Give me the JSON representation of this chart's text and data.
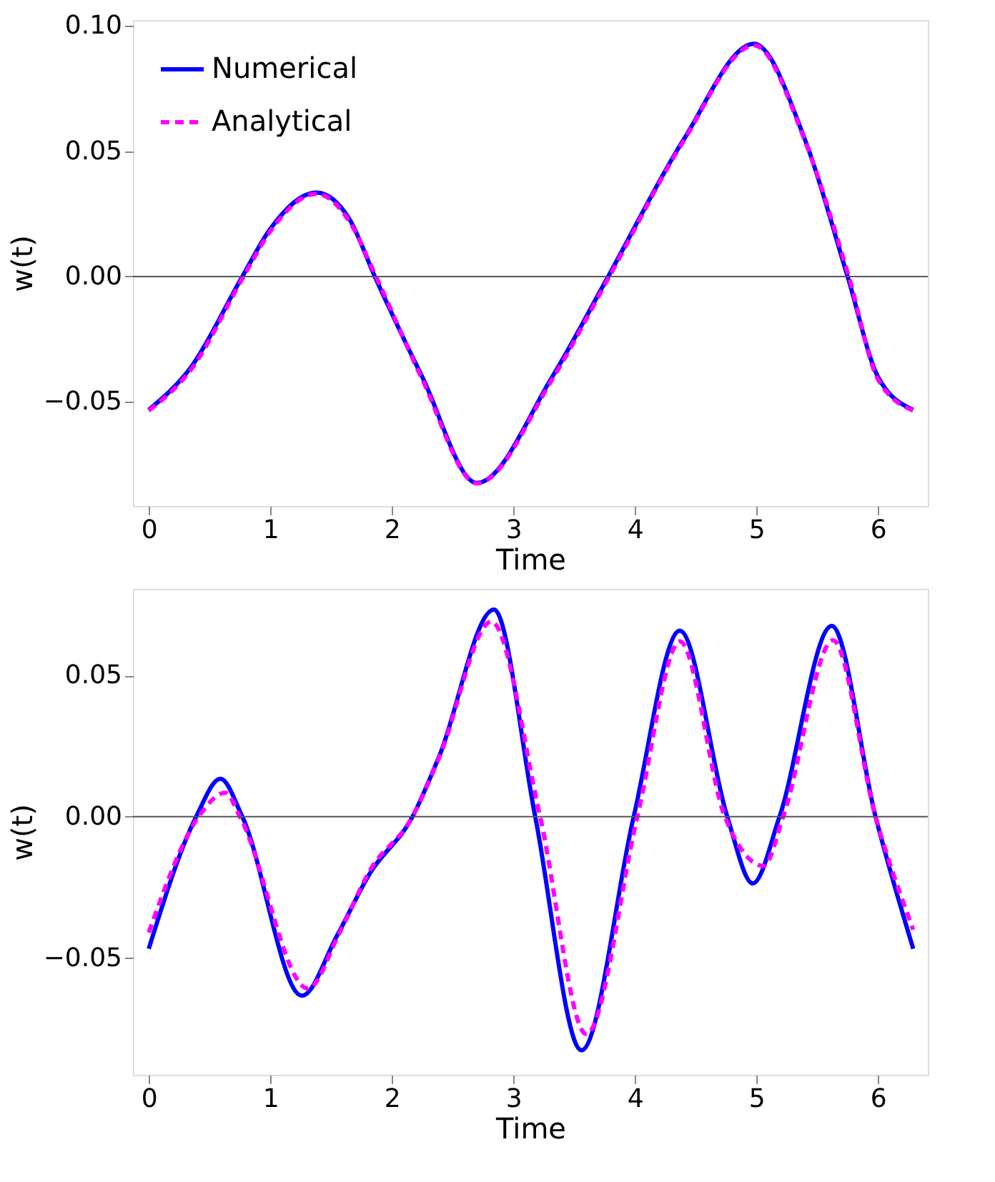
{
  "chart_data": [
    {
      "type": "line",
      "xlabel": "Time",
      "ylabel": "w(t)",
      "xlim": [
        -0.13,
        6.41
      ],
      "ylim": [
        -0.0915,
        0.1023
      ],
      "xticks": [
        0,
        1,
        2,
        3,
        4,
        5,
        6
      ],
      "yticks": [
        {
          "value": -0.05,
          "label": "−0.05"
        },
        {
          "value": 0,
          "label": "0.00"
        },
        {
          "value": 0.05,
          "label": "0.05"
        },
        {
          "value": 0.1,
          "label": "0.10"
        }
      ],
      "legend": "top left",
      "grid": false,
      "ref_lines": [
        {
          "axis": "y",
          "value": 0,
          "color": "#555555"
        }
      ],
      "series": [
        {
          "name": "Numerical",
          "color": "#0000ff",
          "line_style": "solid",
          "x": [
            0,
            0.35,
            0.77,
            1.0,
            1.38,
            1.65,
            1.86,
            2.25,
            2.7,
            3.32,
            3.78,
            4.4,
            4.98,
            5.4,
            5.75,
            6.0,
            6.29
          ],
          "values": [
            -0.0532,
            -0.036,
            0,
            0.019,
            0.0335,
            0.023,
            0,
            -0.04,
            -0.0823,
            -0.04,
            0,
            0.0545,
            0.0928,
            0.0545,
            0,
            -0.04,
            -0.0532
          ]
        },
        {
          "name": "Analytical",
          "color": "#ff00ff",
          "line_style": "dashed",
          "x": [
            0,
            0.35,
            0.78,
            1.0,
            1.38,
            1.65,
            1.87,
            2.25,
            2.7,
            3.32,
            3.79,
            4.4,
            4.98,
            5.4,
            5.76,
            6.0,
            6.29
          ],
          "values": [
            -0.0535,
            -0.037,
            0,
            0.018,
            0.033,
            0.022,
            0,
            -0.041,
            -0.0825,
            -0.041,
            0,
            0.054,
            0.0922,
            0.054,
            0,
            -0.041,
            -0.0535
          ]
        }
      ]
    },
    {
      "type": "line",
      "xlabel": "Time",
      "ylabel": "w(t)",
      "xlim": [
        -0.13,
        6.41
      ],
      "ylim": [
        -0.0913,
        0.0806
      ],
      "xticks": [
        0,
        1,
        2,
        3,
        4,
        5,
        6
      ],
      "yticks": [
        {
          "value": -0.05,
          "label": "−0.05"
        },
        {
          "value": 0,
          "label": "0.00"
        },
        {
          "value": 0.05,
          "label": "0.05"
        }
      ],
      "legend": "top left",
      "grid": false,
      "ref_lines": [
        {
          "axis": "y",
          "value": 0,
          "color": "#555555"
        }
      ],
      "series": [
        {
          "name": "Numerical",
          "color": "#0000ff",
          "line_style": "solid",
          "x": [
            0,
            0.39,
            0.59,
            0.77,
            1.26,
            1.55,
            1.82,
            2.17,
            2.39,
            2.84,
            3.18,
            3.56,
            3.99,
            4.37,
            4.76,
            4.97,
            5.19,
            5.62,
            5.98,
            6.29
          ],
          "values": [
            -0.0467,
            0,
            0.0134,
            0,
            -0.0633,
            -0.042,
            -0.02,
            0,
            0.0214,
            0.0733,
            0,
            -0.0826,
            0,
            0.0658,
            0,
            -0.0236,
            0,
            0.0675,
            0,
            -0.0467
          ]
        },
        {
          "name": "Analytical",
          "color": "#ff00ff",
          "line_style": "dashed",
          "x": [
            0,
            0.41,
            0.63,
            0.75,
            1.31,
            1.57,
            1.82,
            2.17,
            2.39,
            2.82,
            3.22,
            3.6,
            4.02,
            4.37,
            4.74,
            5.06,
            5.22,
            5.63,
            5.98,
            6.29
          ],
          "values": [
            -0.041,
            0,
            0.0085,
            0,
            -0.0608,
            -0.041,
            -0.019,
            0,
            0.021,
            0.069,
            0,
            -0.0769,
            0,
            0.062,
            0,
            -0.0174,
            0,
            0.0624,
            0,
            -0.04
          ]
        }
      ]
    }
  ]
}
